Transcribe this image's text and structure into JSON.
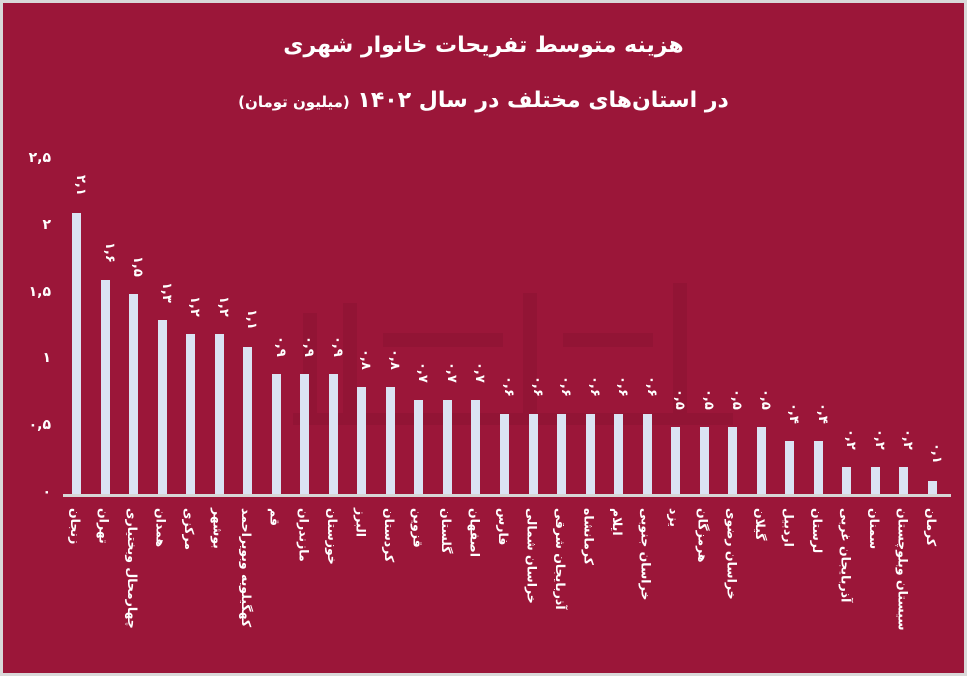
{
  "header": {
    "title_line1": "هزینه متوسط تفریحات خانوار شهری",
    "title_line2": "در استان‌های مختلف در سال ۱۴۰۲",
    "unit": "(میلیون تومان)"
  },
  "colors": {
    "background": "#9b1639",
    "bar": "#dbe3f3",
    "axis": "#d6d6d6",
    "text": "#ffffff",
    "border": "#d9d9d9"
  },
  "yaxis": {
    "ticks": [
      {
        "label": "۲,۵",
        "value": 2.5
      },
      {
        "label": "۲",
        "value": 2
      },
      {
        "label": "۱,۵",
        "value": 1.5
      },
      {
        "label": "۱",
        "value": 1
      },
      {
        "label": "۰,۵",
        "value": 0.5
      },
      {
        "label": "۰",
        "value": 0
      }
    ]
  },
  "watermark": "اقتصادآنلاین ECHTESADONLINE",
  "chart_data": {
    "type": "bar",
    "title": "هزینه متوسط تفریحات خانوار شهری در استان‌های مختلف در سال ۱۴۰۲ (میلیون تومان)",
    "xlabel": "",
    "ylabel": "میلیون تومان",
    "ylim": [
      0,
      2.5
    ],
    "grid": false,
    "legend": null,
    "categories": [
      "زنجان",
      "تهران",
      "چهارمحال وبختیاری",
      "همدان",
      "مرکزی",
      "بوشهر",
      "کهگیلویه وبویراحمد",
      "قم",
      "مازندران",
      "خوزستان",
      "البرز",
      "کردستان",
      "قزوین",
      "گلستان",
      "اصفهان",
      "فارس",
      "خراسان شمالی",
      "آذربایجان شرقی",
      "کرمانشاه",
      "ایلام",
      "خراسان جنوبی",
      "یزد",
      "هرمزگان",
      "خراسان رضوی",
      "گیلان",
      "اردبیل",
      "لرستان",
      "آذربایجان غربی",
      "سمنان",
      "سیستان وبلوچستان",
      "کرمان"
    ],
    "values": [
      2.1,
      1.6,
      1.5,
      1.3,
      1.2,
      1.2,
      1.1,
      0.9,
      0.9,
      0.9,
      0.8,
      0.8,
      0.7,
      0.7,
      0.7,
      0.6,
      0.6,
      0.6,
      0.6,
      0.6,
      0.6,
      0.5,
      0.5,
      0.5,
      0.5,
      0.4,
      0.4,
      0.2,
      0.2,
      0.2,
      0.1
    ],
    "value_labels": [
      "۲,۱",
      "۱,۶",
      "۱,۵",
      "۱,۳",
      "۱,۲",
      "۱,۲",
      "۱,۱",
      "۰,۹",
      "۰,۹",
      "۰,۹",
      "۰,۸",
      "۰,۸",
      "۰,۷",
      "۰,۷",
      "۰,۷",
      "۰,۶",
      "۰,۶",
      "۰,۶",
      "۰,۶",
      "۰,۶",
      "۰,۶",
      "۰,۵",
      "۰,۵",
      "۰,۵",
      "۰,۵",
      "۰,۴",
      "۰,۴",
      "۰,۲",
      "۰,۲",
      "۰,۲",
      "۰,۱"
    ]
  }
}
